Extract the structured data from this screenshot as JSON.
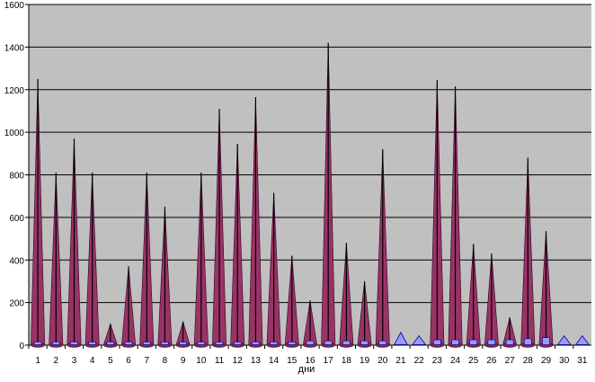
{
  "chart_data": {
    "type": "area",
    "title": "",
    "xlabel": "дни",
    "ylabel": "",
    "ylim": [
      0,
      1600
    ],
    "yticks": [
      0,
      200,
      400,
      600,
      800,
      1000,
      1200,
      1400,
      1600
    ],
    "grid": true,
    "legend": "none",
    "categories": [
      "1",
      "2",
      "3",
      "4",
      "5",
      "6",
      "7",
      "8",
      "9",
      "10",
      "11",
      "12",
      "13",
      "14",
      "15",
      "16",
      "17",
      "18",
      "19",
      "20",
      "21",
      "22",
      "23",
      "24",
      "25",
      "26",
      "27",
      "28",
      "29",
      "30",
      "31"
    ],
    "series": [
      {
        "color": "#993366",
        "edge_color": "#000000",
        "values": [
          1250,
          810,
          970,
          810,
          100,
          370,
          810,
          650,
          110,
          810,
          1110,
          945,
          1165,
          715,
          420,
          210,
          1420,
          480,
          300,
          920,
          0,
          0,
          1245,
          1215,
          475,
          430,
          130,
          880,
          535,
          0,
          0
        ]
      },
      {
        "color": "#9999FF",
        "edge_color": "#000080",
        "values": [
          5,
          5,
          5,
          5,
          5,
          5,
          5,
          5,
          5,
          10,
          10,
          10,
          15,
          15,
          15,
          20,
          20,
          20,
          20,
          20,
          60,
          20,
          25,
          25,
          25,
          25,
          25,
          30,
          35,
          25,
          30
        ]
      }
    ]
  }
}
